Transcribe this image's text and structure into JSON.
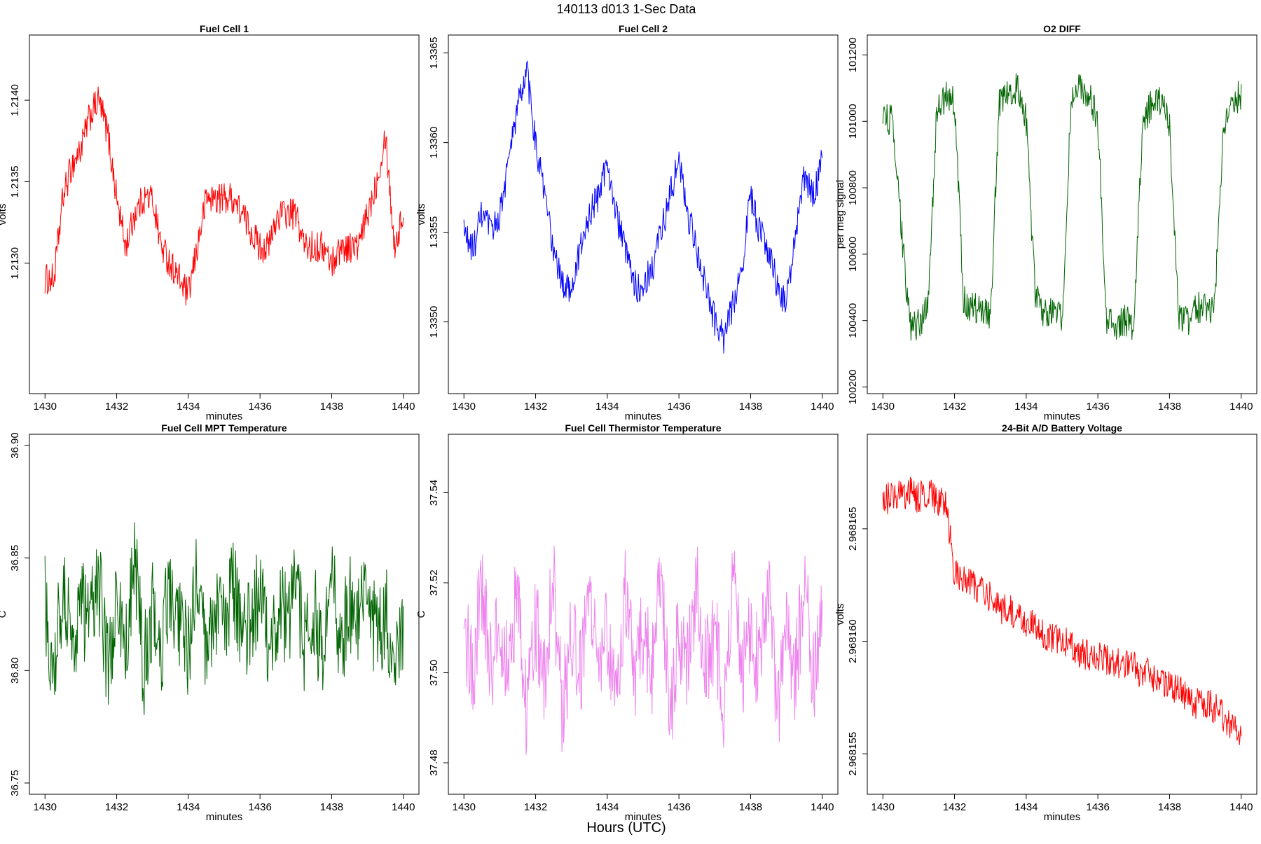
{
  "figure": {
    "title": "140113   d013   1-Sec Data",
    "xlabel": "Hours (UTC)"
  },
  "chart_data": [
    {
      "type": "line",
      "title": "Fuel Cell 1",
      "xlabel": "minutes",
      "ylabel": "volts",
      "color": "#ff0000",
      "xlim": [
        1430,
        1440
      ],
      "ylim": [
        1.2122,
        1.2144
      ],
      "xticks": [
        1430,
        1432,
        1434,
        1436,
        1438,
        1440
      ],
      "yticks": [
        1.213,
        1.2135,
        1.214
      ],
      "ytick_labels": [
        "1.2130",
        "1.2135",
        "1.2140"
      ],
      "x": [
        1430,
        1430.25,
        1430.5,
        1430.75,
        1431,
        1431.25,
        1431.5,
        1431.75,
        1432,
        1432.25,
        1432.5,
        1432.75,
        1433,
        1433.25,
        1433.5,
        1433.75,
        1434,
        1434.25,
        1434.5,
        1434.75,
        1435,
        1435.25,
        1435.5,
        1435.75,
        1436,
        1436.25,
        1436.5,
        1436.75,
        1437,
        1437.25,
        1437.5,
        1437.75,
        1438,
        1438.25,
        1438.5,
        1438.75,
        1439,
        1439.25,
        1439.5,
        1439.75,
        1440
      ],
      "values": [
        1.2129,
        1.2129,
        1.2134,
        1.2136,
        1.2137,
        1.2139,
        1.214,
        1.2138,
        1.2134,
        1.2131,
        1.2133,
        1.2134,
        1.2134,
        1.2131,
        1.213,
        1.2129,
        1.2128,
        1.2131,
        1.2134,
        1.2134,
        1.2134,
        1.2134,
        1.2133,
        1.2132,
        1.2131,
        1.2131,
        1.2133,
        1.2133,
        1.2133,
        1.2131,
        1.2131,
        1.2131,
        1.213,
        1.2131,
        1.2131,
        1.2131,
        1.2133,
        1.2135,
        1.2138,
        1.2131,
        1.2133
      ],
      "axis_pos": "bottom"
    },
    {
      "type": "line",
      "title": "Fuel Cell 2",
      "xlabel": "minutes",
      "ylabel": "volts",
      "color": "#0000ff",
      "xlim": [
        1430,
        1440
      ],
      "ylim": [
        1.3346,
        1.3366
      ],
      "xticks": [
        1430,
        1432,
        1434,
        1436,
        1438,
        1440
      ],
      "yticks": [
        1.335,
        1.3355,
        1.336,
        1.3365
      ],
      "ytick_labels": [
        "1.3350",
        "1.3355",
        "1.3360",
        "1.3365"
      ],
      "x": [
        1430,
        1430.25,
        1430.5,
        1430.75,
        1431,
        1431.25,
        1431.5,
        1431.75,
        1432,
        1432.25,
        1432.5,
        1432.75,
        1433,
        1433.25,
        1433.5,
        1433.75,
        1434,
        1434.25,
        1434.5,
        1434.75,
        1435,
        1435.25,
        1435.5,
        1435.75,
        1436,
        1436.25,
        1436.5,
        1436.75,
        1437,
        1437.25,
        1437.5,
        1437.75,
        1438,
        1438.25,
        1438.5,
        1438.75,
        1439,
        1439.25,
        1439.5,
        1439.75,
        1440
      ],
      "values": [
        1.3355,
        1.3354,
        1.3356,
        1.3355,
        1.3356,
        1.3359,
        1.3362,
        1.3364,
        1.336,
        1.3357,
        1.3354,
        1.3352,
        1.3352,
        1.3354,
        1.3356,
        1.3357,
        1.3359,
        1.3356,
        1.3354,
        1.3352,
        1.3352,
        1.3353,
        1.3355,
        1.3357,
        1.3359,
        1.3356,
        1.3354,
        1.3352,
        1.335,
        1.3349,
        1.3351,
        1.3353,
        1.3357,
        1.3355,
        1.3354,
        1.3352,
        1.3351,
        1.3355,
        1.3358,
        1.3357,
        1.3359
      ],
      "axis_pos": "bottom"
    },
    {
      "type": "line",
      "title": "O2 DIFF",
      "xlabel": "minutes",
      "ylabel": "per meg signal",
      "color": "#006400",
      "xlim": [
        1430,
        1440
      ],
      "ylim": [
        100180,
        101260
      ],
      "xticks": [
        1430,
        1432,
        1434,
        1436,
        1438,
        1440
      ],
      "yticks": [
        100200,
        100400,
        100600,
        100800,
        101000,
        101200
      ],
      "ytick_labels": [
        "100200",
        "100400",
        "100600",
        "100800",
        "101000",
        "101200"
      ],
      "x": [
        1430,
        1430.25,
        1430.5,
        1430.75,
        1431,
        1431.25,
        1431.5,
        1431.75,
        1432,
        1432.25,
        1432.5,
        1432.75,
        1433,
        1433.25,
        1433.5,
        1433.75,
        1434,
        1434.25,
        1434.5,
        1434.75,
        1435,
        1435.25,
        1435.5,
        1435.75,
        1436,
        1436.25,
        1436.5,
        1436.75,
        1437,
        1437.25,
        1437.5,
        1437.75,
        1438,
        1438.25,
        1438.5,
        1438.75,
        1439,
        1439.25,
        1439.5,
        1439.75,
        1440
      ],
      "values": [
        101020,
        101000,
        100700,
        100380,
        100390,
        100440,
        101020,
        101080,
        101060,
        100460,
        100440,
        100440,
        100420,
        101050,
        101100,
        101100,
        101000,
        100480,
        100420,
        100440,
        100400,
        101050,
        101100,
        101080,
        101000,
        100400,
        100380,
        100400,
        100380,
        101000,
        101050,
        101060,
        101000,
        100400,
        100400,
        100440,
        100440,
        100440,
        100950,
        101060,
        101080
      ],
      "axis_pos": "bottom"
    },
    {
      "type": "line",
      "title": "Fuel Cell MPT Temperature",
      "xlabel": "minutes",
      "ylabel": "C",
      "color": "#006400",
      "xlim": [
        1430,
        1440
      ],
      "ylim": [
        36.745,
        36.905
      ],
      "xticks": [
        1430,
        1432,
        1434,
        1436,
        1438,
        1440
      ],
      "yticks": [
        36.75,
        36.8,
        36.85,
        36.9
      ],
      "ytick_labels": [
        "36.75",
        "36.80",
        "36.85",
        "36.90"
      ],
      "x": [
        1430,
        1430.25,
        1430.5,
        1430.75,
        1431,
        1431.25,
        1431.5,
        1431.75,
        1432,
        1432.25,
        1432.5,
        1432.75,
        1433,
        1433.25,
        1433.5,
        1433.75,
        1434,
        1434.25,
        1434.5,
        1434.75,
        1435,
        1435.25,
        1435.5,
        1435.75,
        1436,
        1436.25,
        1436.5,
        1436.75,
        1437,
        1437.25,
        1437.5,
        1437.75,
        1438,
        1438.25,
        1438.5,
        1438.75,
        1439,
        1439.25,
        1439.5,
        1439.75,
        1440
      ],
      "values": [
        36.83,
        36.8,
        36.84,
        36.81,
        36.83,
        36.82,
        36.84,
        36.8,
        36.83,
        36.81,
        36.85,
        36.8,
        36.83,
        36.81,
        36.84,
        36.82,
        36.81,
        36.84,
        36.8,
        36.83,
        36.82,
        36.84,
        36.81,
        36.82,
        36.84,
        36.8,
        36.83,
        36.82,
        36.84,
        36.81,
        36.83,
        36.8,
        36.84,
        36.81,
        36.83,
        36.82,
        36.84,
        36.81,
        36.83,
        36.8,
        36.82
      ],
      "axis_pos": "bottom"
    },
    {
      "type": "line",
      "title": "Fuel Cell Thermistor Temperature",
      "xlabel": "minutes",
      "ylabel": "C",
      "color": "#ee82ee",
      "xlim": [
        1430,
        1440
      ],
      "ylim": [
        37.473,
        37.553
      ],
      "xticks": [
        1430,
        1432,
        1434,
        1436,
        1438,
        1440
      ],
      "yticks": [
        37.48,
        37.5,
        37.52,
        37.54
      ],
      "ytick_labels": [
        "37.48",
        "37.50",
        "37.52",
        "37.54"
      ],
      "x": [
        1430,
        1430.25,
        1430.5,
        1430.75,
        1431,
        1431.25,
        1431.5,
        1431.75,
        1432,
        1432.25,
        1432.5,
        1432.75,
        1433,
        1433.25,
        1433.5,
        1433.75,
        1434,
        1434.25,
        1434.5,
        1434.75,
        1435,
        1435.25,
        1435.5,
        1435.75,
        1436,
        1436.25,
        1436.5,
        1436.75,
        1437,
        1437.25,
        1437.5,
        1437.75,
        1438,
        1438.25,
        1438.5,
        1438.75,
        1439,
        1439.25,
        1439.5,
        1439.75,
        1440
      ],
      "values": [
        37.51,
        37.5,
        37.52,
        37.5,
        37.51,
        37.5,
        37.52,
        37.49,
        37.51,
        37.5,
        37.52,
        37.49,
        37.51,
        37.5,
        37.52,
        37.5,
        37.51,
        37.49,
        37.52,
        37.5,
        37.51,
        37.5,
        37.52,
        37.49,
        37.51,
        37.5,
        37.52,
        37.5,
        37.51,
        37.49,
        37.52,
        37.5,
        37.51,
        37.5,
        37.52,
        37.49,
        37.51,
        37.5,
        37.52,
        37.5,
        37.51
      ],
      "axis_pos": "bottom"
    },
    {
      "type": "line",
      "title": "24-Bit A/D Battery Voltage",
      "xlabel": "minutes",
      "ylabel": "volts",
      "color": "#ff0000",
      "xlim": [
        1430,
        1440
      ],
      "ylim": [
        2.9681532,
        2.9681692
      ],
      "xticks": [
        1430,
        1432,
        1434,
        1436,
        1438,
        1440
      ],
      "yticks": [
        2.968155,
        2.96816,
        2.968165
      ],
      "ytick_labels": [
        "2.968155",
        "2.968160",
        "2.968165"
      ],
      "x": [
        1430,
        1430.25,
        1430.5,
        1430.75,
        1431,
        1431.25,
        1431.5,
        1431.75,
        1432,
        1432.25,
        1432.5,
        1432.75,
        1433,
        1433.25,
        1433.5,
        1433.75,
        1434,
        1434.25,
        1434.5,
        1434.75,
        1435,
        1435.25,
        1435.5,
        1435.75,
        1436,
        1436.25,
        1436.5,
        1436.75,
        1437,
        1437.25,
        1437.5,
        1437.75,
        1438,
        1438.25,
        1438.5,
        1438.75,
        1439,
        1439.25,
        1439.5,
        1439.75,
        1440
      ],
      "values": [
        2.9681662,
        2.9681665,
        2.9681664,
        2.9681666,
        2.9681664,
        2.9681666,
        2.9681663,
        2.9681662,
        2.968163,
        2.9681628,
        2.9681625,
        2.9681622,
        2.968162,
        2.9681615,
        2.9681614,
        2.9681612,
        2.9681608,
        2.9681606,
        2.9681603,
        2.9681601,
        2.9681601,
        2.9681597,
        2.9681595,
        2.9681593,
        2.9681594,
        2.9681592,
        2.968159,
        2.968159,
        2.9681588,
        2.9681586,
        2.9681585,
        2.9681583,
        2.9681581,
        2.9681578,
        2.9681575,
        2.9681572,
        2.9681573,
        2.968157,
        2.9681567,
        2.9681563,
        2.968156
      ],
      "axis_pos": "bottom"
    }
  ]
}
